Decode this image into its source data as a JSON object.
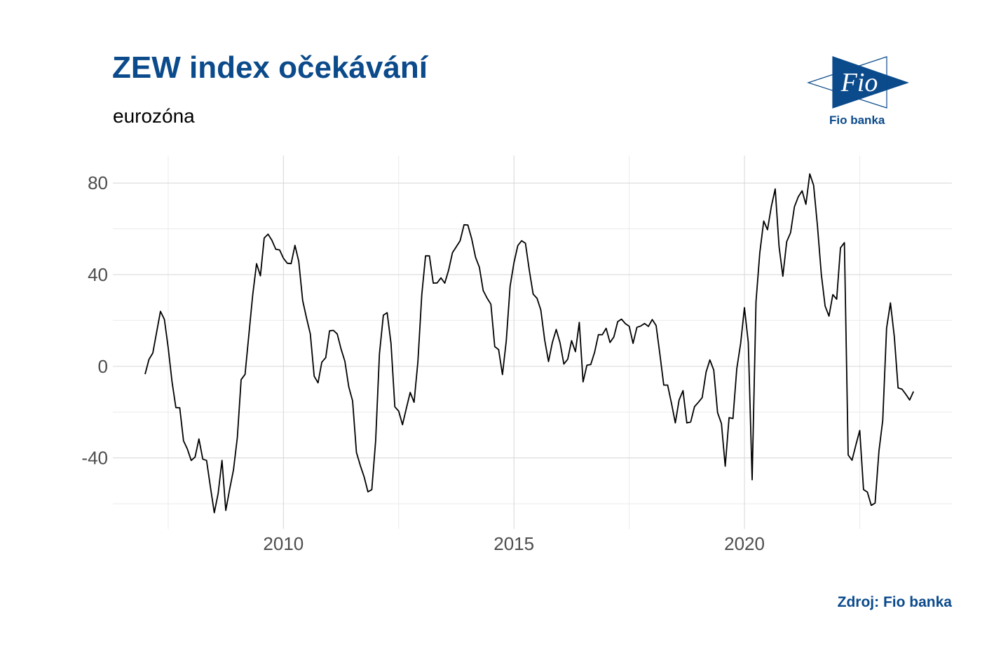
{
  "header": {
    "title": "ZEW index očekávání",
    "subtitle": "eurozóna"
  },
  "logo": {
    "mark_text": "Fio",
    "caption": "Fio banka",
    "color": "#0b4a8b"
  },
  "footer": {
    "source": "Zdroj: Fio banka"
  },
  "chart_data": {
    "type": "line",
    "xlim": [
      2006.3,
      2024.5
    ],
    "ylim": [
      -71,
      92
    ],
    "x_ticks": [
      2010,
      2015,
      2020
    ],
    "x_tick_labels": [
      "2010",
      "2015",
      "2020"
    ],
    "y_ticks": [
      80,
      40,
      0,
      -40
    ],
    "y_tick_labels": [
      "80",
      "40",
      "0",
      "-40"
    ],
    "grid": true,
    "line_color": "#000000",
    "series": [
      {
        "x": [
          2007.0,
          2007.083,
          2007.167,
          2007.25,
          2007.333,
          2007.417,
          2007.5,
          2007.583,
          2007.667,
          2007.75,
          2007.833,
          2007.917,
          2008.0,
          2008.083,
          2008.167,
          2008.25,
          2008.333,
          2008.417,
          2008.5,
          2008.583,
          2008.667,
          2008.75,
          2008.833,
          2008.917,
          2009.0,
          2009.083,
          2009.167,
          2009.25,
          2009.333,
          2009.417,
          2009.5,
          2009.583,
          2009.667,
          2009.75,
          2009.833,
          2009.917,
          2010.0,
          2010.083,
          2010.167,
          2010.25,
          2010.333,
          2010.417,
          2010.5,
          2010.583,
          2010.667,
          2010.75,
          2010.833,
          2010.917,
          2011.0,
          2011.083,
          2011.167,
          2011.25,
          2011.333,
          2011.417,
          2011.5,
          2011.583,
          2011.667,
          2011.75,
          2011.833,
          2011.917,
          2012.0,
          2012.083,
          2012.167,
          2012.25,
          2012.333,
          2012.417,
          2012.5,
          2012.583,
          2012.667,
          2012.75,
          2012.833,
          2012.917,
          2013.0,
          2013.083,
          2013.167,
          2013.25,
          2013.333,
          2013.417,
          2013.5,
          2013.583,
          2013.667,
          2013.75,
          2013.833,
          2013.917,
          2014.0,
          2014.083,
          2014.167,
          2014.25,
          2014.333,
          2014.417,
          2014.5,
          2014.583,
          2014.667,
          2014.75,
          2014.833,
          2014.917,
          2015.0,
          2015.083,
          2015.167,
          2015.25,
          2015.333,
          2015.417,
          2015.5,
          2015.583,
          2015.667,
          2015.75,
          2015.833,
          2015.917,
          2016.0,
          2016.083,
          2016.167,
          2016.25,
          2016.333,
          2016.417,
          2016.5,
          2016.583,
          2016.667,
          2016.75,
          2016.833,
          2016.917,
          2017.0,
          2017.083,
          2017.167,
          2017.25,
          2017.333,
          2017.417,
          2017.5,
          2017.583,
          2017.667,
          2017.75,
          2017.833,
          2017.917,
          2018.0,
          2018.083,
          2018.167,
          2018.25,
          2018.333,
          2018.417,
          2018.5,
          2018.583,
          2018.667,
          2018.75,
          2018.833,
          2018.917,
          2019.0,
          2019.083,
          2019.167,
          2019.25,
          2019.333,
          2019.417,
          2019.5,
          2019.583,
          2019.667,
          2019.75,
          2019.833,
          2019.917,
          2020.0,
          2020.083,
          2020.167,
          2020.25,
          2020.333,
          2020.417,
          2020.5,
          2020.583,
          2020.667,
          2020.75,
          2020.833,
          2020.917,
          2021.0,
          2021.083,
          2021.167,
          2021.25,
          2021.333,
          2021.417,
          2021.5,
          2021.583,
          2021.667,
          2021.75,
          2021.833,
          2021.917,
          2022.0,
          2022.083,
          2022.167,
          2022.25,
          2022.333,
          2022.417,
          2022.5,
          2022.583,
          2022.667,
          2022.75,
          2022.833,
          2022.917,
          2023.0,
          2023.083,
          2023.167,
          2023.25,
          2023.333,
          2023.417,
          2023.5,
          2023.583,
          2023.667
        ],
        "values": [
          -3.4,
          3.0,
          5.8,
          15.0,
          24.0,
          20.5,
          8.2,
          -6.7,
          -18.0,
          -18.1,
          -32.5,
          -36.1,
          -41.1,
          -39.6,
          -31.7,
          -40.5,
          -41.1,
          -52.7,
          -63.9,
          -55.5,
          -41.1,
          -62.9,
          -53.7,
          -45.2,
          -31.0,
          -5.8,
          -3.5,
          13.7,
          31.1,
          44.8,
          39.5,
          56.0,
          57.7,
          55.0,
          51.1,
          50.8,
          47.2,
          45.0,
          44.8,
          52.8,
          45.8,
          28.7,
          21.2,
          14.1,
          -4.3,
          -7.2,
          1.8,
          3.8,
          15.5,
          15.7,
          14.1,
          7.5,
          2.2,
          -8.9,
          -15.1,
          -37.6,
          -43.3,
          -48.2,
          -54.8,
          -53.8,
          -32.5,
          5.4,
          22.3,
          23.4,
          10.0,
          -17.7,
          -19.6,
          -25.5,
          -18.2,
          -11.4,
          -15.7,
          2.1,
          31.2,
          48.2,
          48.2,
          36.3,
          36.4,
          38.6,
          36.3,
          42.0,
          49.6,
          52.2,
          54.8,
          61.8,
          61.7,
          55.7,
          47.6,
          43.2,
          33.1,
          29.8,
          27.1,
          8.6,
          7.3,
          -3.6,
          11.0,
          34.9,
          45.2,
          52.7,
          54.8,
          53.7,
          41.9,
          31.5,
          29.7,
          24.6,
          11.4,
          2.1,
          10.4,
          16.1,
          10.2,
          1.0,
          3.1,
          11.2,
          6.4,
          19.2,
          -6.8,
          0.5,
          0.8,
          6.2,
          13.8,
          13.8,
          16.6,
          10.4,
          12.8,
          19.5,
          20.6,
          18.6,
          17.5,
          10.0,
          17.0,
          17.6,
          18.7,
          17.4,
          20.4,
          17.8,
          5.0,
          -8.2,
          -8.2,
          -16.1,
          -24.7,
          -14.7,
          -10.6,
          -24.7,
          -24.3,
          -17.6,
          -15.7,
          -13.7,
          -2.5,
          2.8,
          -1.6,
          -20.2,
          -25.0,
          -43.6,
          -22.4,
          -22.8,
          -1.0,
          10.0,
          25.6,
          10.4,
          -49.5,
          28.2,
          49.5,
          63.4,
          59.6,
          69.8,
          77.4,
          52.3,
          39.3,
          54.4,
          58.3,
          69.6,
          74.0,
          76.6,
          70.7,
          84.0,
          79.0,
          61.2,
          40.1,
          26.3,
          21.9,
          31.3,
          29.3,
          51.7,
          54.0,
          -38.7,
          -41.0,
          -34.3,
          -28.0,
          -53.8,
          -54.9,
          -60.7,
          -59.7,
          -37.0,
          -23.6,
          16.7,
          27.7,
          13.0,
          -9.4,
          -10.0,
          -12.2,
          -14.7,
          -11.0
        ]
      }
    ]
  }
}
